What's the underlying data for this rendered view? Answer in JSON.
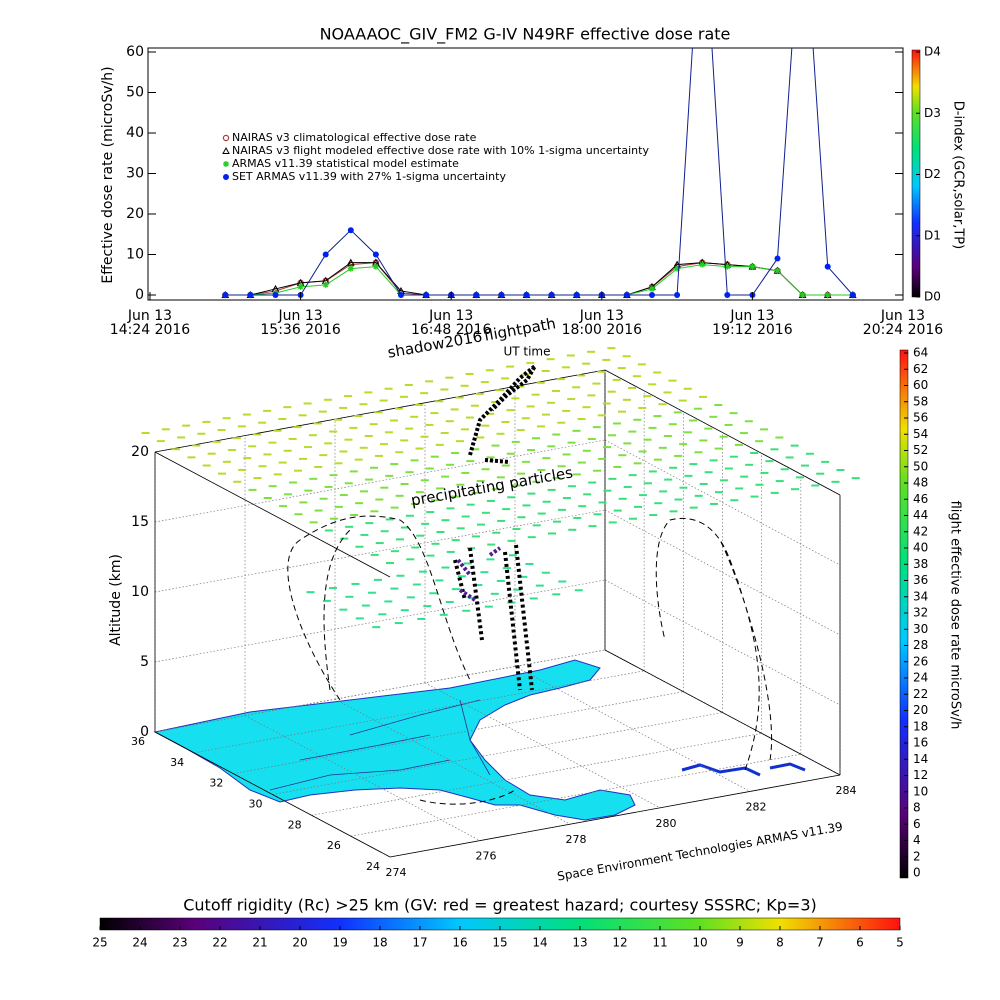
{
  "chart_data": [
    {
      "type": "line",
      "title": "NOAAAOC_GIV_FM2 G-IV   N49RF  effective dose rate",
      "ylabel": "Effective dose rate (microSv/h)",
      "xlabel": "UT time",
      "x": [
        15.0,
        15.2,
        15.4,
        15.6,
        15.8,
        16.0,
        16.2,
        16.4,
        16.6,
        16.8,
        17.0,
        17.2,
        17.4,
        17.6,
        17.8,
        18.0,
        18.2,
        18.4,
        18.6,
        18.8,
        19.0,
        19.2,
        19.4,
        19.6,
        19.8,
        20.0
      ],
      "xlim": [
        14.4,
        20.4
      ],
      "xticks": [
        {
          "value": 14.4,
          "label": "14:24 2016"
        },
        {
          "value": 15.6,
          "label": "15:36 2016"
        },
        {
          "value": 16.8,
          "label": "16:48 2016"
        },
        {
          "value": 18.0,
          "label": "18:00 2016"
        },
        {
          "value": 19.2,
          "label": "19:12 2016"
        },
        {
          "value": 20.4,
          "label": "20:24 2016"
        }
      ],
      "xtick_dates": [
        "Jun 13",
        "Jun 13",
        "Jun 13",
        "Jun 13",
        "Jun 13",
        "Jun 13"
      ],
      "ylim": [
        0,
        60
      ],
      "yticks": [
        0,
        10,
        20,
        30,
        40,
        50,
        60
      ],
      "legend": "upper left",
      "series": [
        {
          "name": "NAIRAS v3 climatological effective dose rate",
          "color": "#b03a3a",
          "marker": "circle",
          "values": [
            0,
            0,
            1,
            3,
            3.5,
            7.5,
            8,
            0.5,
            0,
            0,
            0,
            0,
            0,
            0,
            0,
            0,
            0,
            2,
            7,
            8,
            7.5,
            7,
            6,
            0,
            0,
            0
          ]
        },
        {
          "name": "NAIRAS v3 flight modeled effective dose rate with 10% 1-sigma uncertainty",
          "color": "#000000",
          "marker": "triangle",
          "values": [
            0,
            0,
            1.5,
            3,
            3.5,
            8,
            8,
            1,
            0,
            0,
            0,
            0,
            0,
            0,
            0,
            0,
            0,
            2,
            7.5,
            8,
            7.5,
            7,
            6,
            0,
            0,
            0
          ]
        },
        {
          "name": "ARMAS v11.39 statistical model estimate",
          "color": "#22cc22",
          "marker": "asterisk",
          "values": [
            0,
            0,
            0.5,
            2,
            2.5,
            6.5,
            7,
            0,
            0,
            0,
            0,
            0,
            0,
            0,
            0,
            0,
            0,
            1.5,
            6.5,
            7.5,
            7,
            7,
            6,
            0,
            0,
            0
          ]
        },
        {
          "name": "SET ARMAS v11.39 with 27% 1-sigma uncertainty",
          "color": "#0022ee",
          "marker": "dot",
          "values": [
            0,
            0,
            0,
            0,
            10,
            16,
            10,
            0,
            0,
            0,
            0,
            0,
            0,
            0,
            0,
            0,
            0,
            0,
            0,
            100,
            0,
            0,
            9,
            100,
            7,
            0
          ]
        }
      ],
      "colorbar": {
        "label": "D-index (GCR,solar,TP)",
        "lim": [
          0,
          4
        ],
        "ticks": [
          {
            "value": 0,
            "label": "D0"
          },
          {
            "value": 1,
            "label": "D1"
          },
          {
            "value": 2,
            "label": "D2"
          },
          {
            "value": 3,
            "label": "D3"
          },
          {
            "value": 4,
            "label": "D4"
          }
        ]
      }
    },
    {
      "type": "scatter3d",
      "zlabel": "Altitude (km)",
      "zlim": [
        0,
        20
      ],
      "zticks": [
        0,
        5,
        10,
        15,
        20
      ],
      "xlim": [
        274,
        284
      ],
      "xticks": [
        274,
        276,
        278,
        280,
        282,
        284
      ],
      "ylim": [
        24,
        36
      ],
      "yticks": [
        24,
        26,
        28,
        30,
        32,
        34,
        36
      ],
      "annotations": [
        "shadow2016",
        "flightpath",
        "precipitating particles"
      ],
      "credit": "Space Environment Technologies ARMAS v11.39",
      "colorbar": {
        "label": "flight effective dose rate microSv/h",
        "lim": [
          0,
          64
        ],
        "ticks": [
          0,
          2,
          4,
          6,
          8,
          10,
          12,
          14,
          16,
          18,
          20,
          22,
          24,
          26,
          28,
          30,
          32,
          34,
          36,
          38,
          40,
          42,
          44,
          46,
          48,
          50,
          52,
          54,
          56,
          58,
          60,
          62,
          64
        ]
      }
    },
    {
      "type": "colorbar",
      "title": "Cutoff rigidity (Rc) >25 km (GV: red = greatest hazard; courtesy SSSRC; Kp=3)",
      "lim": [
        25,
        5
      ],
      "ticks": [
        25,
        24,
        23,
        22,
        21,
        20,
        19,
        18,
        17,
        16,
        15,
        14,
        13,
        12,
        11,
        10,
        9,
        8,
        7,
        6,
        5
      ]
    }
  ]
}
